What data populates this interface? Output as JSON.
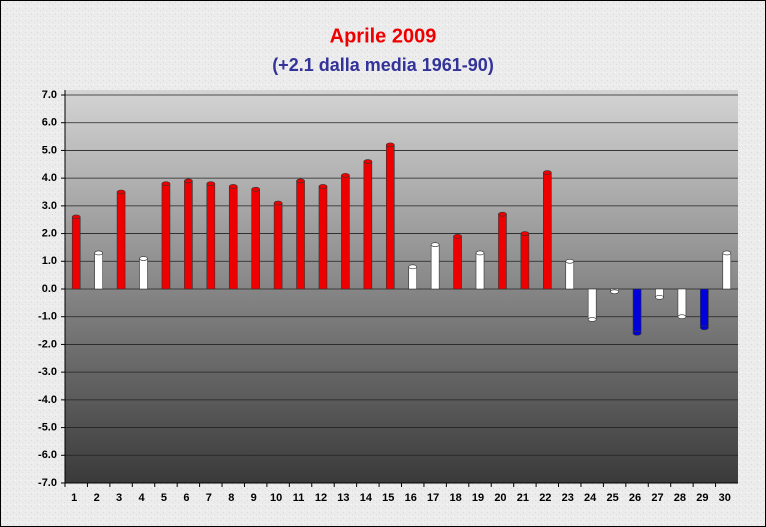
{
  "chart_data": {
    "type": "bar",
    "title": "Aprile 2009",
    "subtitle": "(+2.1 dalla media 1961-90)",
    "categories": [
      "1",
      "2",
      "3",
      "4",
      "5",
      "6",
      "7",
      "8",
      "9",
      "10",
      "11",
      "12",
      "13",
      "14",
      "15",
      "16",
      "17",
      "18",
      "19",
      "20",
      "21",
      "22",
      "23",
      "24",
      "25",
      "26",
      "27",
      "28",
      "29",
      "30"
    ],
    "values": [
      2.6,
      1.3,
      3.5,
      1.1,
      3.8,
      3.9,
      3.8,
      3.7,
      3.6,
      3.1,
      3.9,
      3.7,
      4.1,
      4.6,
      5.2,
      0.8,
      1.6,
      1.9,
      1.3,
      2.7,
      2.0,
      4.2,
      1.0,
      -1.1,
      -0.1,
      -1.6,
      -0.3,
      -1.0,
      -1.4,
      1.3
    ],
    "colors": [
      "#ee0000",
      "#ffffff",
      "#ee0000",
      "#ffffff",
      "#ee0000",
      "#ee0000",
      "#ee0000",
      "#ee0000",
      "#ee0000",
      "#ee0000",
      "#ee0000",
      "#ee0000",
      "#ee0000",
      "#ee0000",
      "#ee0000",
      "#ffffff",
      "#ffffff",
      "#ee0000",
      "#ffffff",
      "#ee0000",
      "#ee0000",
      "#ee0000",
      "#ffffff",
      "#ffffff",
      "#ffffff",
      "#0000dd",
      "#ffffff",
      "#ffffff",
      "#0000dd",
      "#ffffff"
    ],
    "ylim": [
      -7,
      7
    ],
    "yticks": [
      {
        "value": 7,
        "label": "7.0"
      },
      {
        "value": 6,
        "label": "6.0"
      },
      {
        "value": 5,
        "label": "5.0"
      },
      {
        "value": 4,
        "label": "4.0"
      },
      {
        "value": 3,
        "label": "3.0"
      },
      {
        "value": 2,
        "label": "2.0"
      },
      {
        "value": 1,
        "label": "1.0"
      },
      {
        "value": 0,
        "label": "0.0"
      },
      {
        "value": -1,
        "label": "-1.0"
      },
      {
        "value": -2,
        "label": "-2.0"
      },
      {
        "value": -3,
        "label": "-3.0"
      },
      {
        "value": -4,
        "label": "-4.0"
      },
      {
        "value": -5,
        "label": "-5.0"
      },
      {
        "value": -6,
        "label": "-6.0"
      },
      {
        "value": -7,
        "label": "-7.0"
      }
    ],
    "grid": true
  }
}
